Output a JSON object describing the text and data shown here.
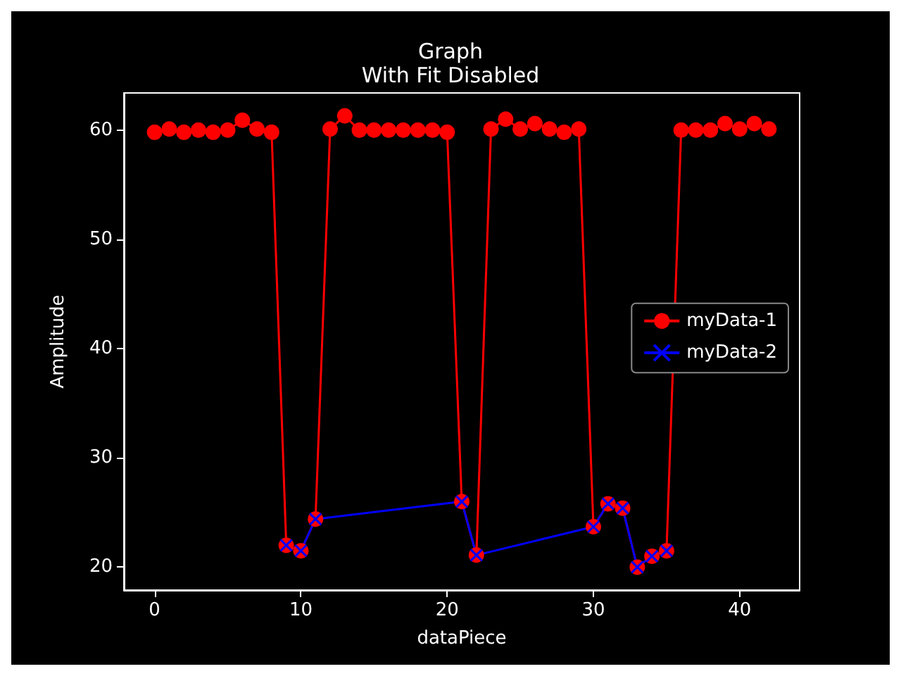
{
  "chart_data": {
    "type": "line",
    "title": "Graph",
    "subtitle": "With Fit Disabled",
    "xlabel": "dataPiece",
    "ylabel": "Amplitude",
    "xlim": [
      -2.1,
      44.1
    ],
    "xticks": [
      0,
      10,
      20,
      30,
      40
    ],
    "ylim": [
      17.9,
      63.4
    ],
    "yticks": [
      20,
      30,
      40,
      50,
      60
    ],
    "grid": false,
    "legend": "center right",
    "series": [
      {
        "name": "myData-1",
        "color": "#ff0000",
        "marker": "circle",
        "x": [
          0,
          1,
          2,
          3,
          4,
          5,
          6,
          7,
          8,
          9,
          10,
          11,
          12,
          13,
          14,
          15,
          16,
          17,
          18,
          19,
          20,
          21,
          22,
          23,
          24,
          25,
          26,
          27,
          28,
          29,
          30,
          31,
          32,
          33,
          34,
          35,
          36,
          37,
          38,
          39,
          40,
          41,
          42
        ],
        "values": [
          59.8,
          60.1,
          59.8,
          60,
          59.8,
          60,
          60.9,
          60.1,
          59.8,
          22,
          21.5,
          24.4,
          60.1,
          61.3,
          60,
          60,
          60,
          60,
          60,
          60,
          59.8,
          26,
          21.1,
          60.1,
          61,
          60.1,
          60.6,
          60.1,
          59.8,
          60.1,
          23.7,
          25.8,
          25.4,
          20,
          21,
          21.5,
          60,
          60,
          60,
          60.6,
          60.1,
          60.6,
          60.1
        ]
      },
      {
        "name": "myData-2",
        "color": "#0000ff",
        "marker": "cross",
        "x": [
          9,
          10,
          11,
          21,
          22,
          30,
          31,
          32,
          33,
          34,
          35
        ],
        "values": [
          22,
          21.5,
          24.4,
          26,
          21.1,
          23.7,
          25.8,
          25.4,
          20,
          21,
          21.5
        ]
      }
    ]
  }
}
